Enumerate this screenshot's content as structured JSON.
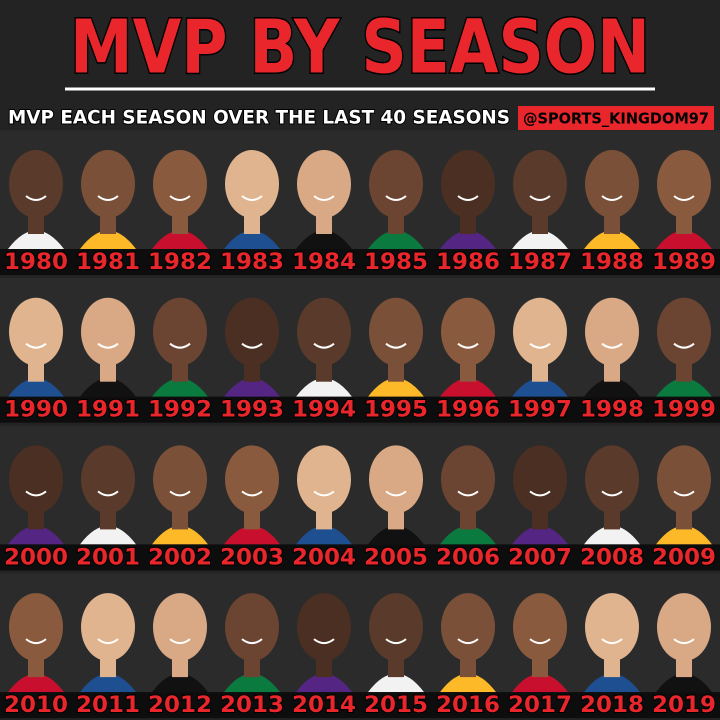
{
  "header": {
    "title": "MVP BY SEASON",
    "subtitle": "MVP EACH SEASON OVER THE LAST 40 SEASONS",
    "handle": "@SPORTS_KINGDOM97"
  },
  "grid": {
    "rows": [
      [
        "1980",
        "1981",
        "1982",
        "1983",
        "1984",
        "1985",
        "1986",
        "1987",
        "1988",
        "1989"
      ],
      [
        "1990",
        "1991",
        "1992",
        "1993",
        "1994",
        "1995",
        "1996",
        "1997",
        "1998",
        "1999"
      ],
      [
        "2000",
        "2001",
        "2002",
        "2003",
        "2004",
        "2005",
        "2006",
        "2007",
        "2008",
        "2009"
      ],
      [
        "2010",
        "2011",
        "2012",
        "2013",
        "2014",
        "2015",
        "2016",
        "2017",
        "2018",
        "2019"
      ]
    ]
  }
}
